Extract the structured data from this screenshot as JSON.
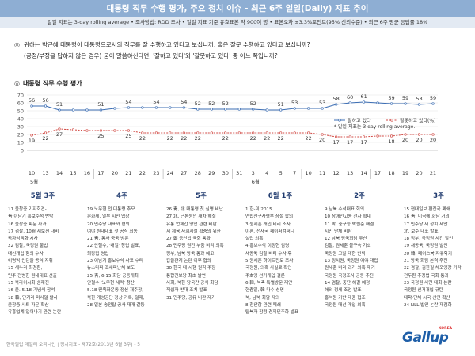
{
  "header": {
    "title": "대통령 직무 수행 평가, 주요 정치 이슈 - 최근 6주 일일(Daily) 지표 추이"
  },
  "subheader": {
    "text": "일일 지표는 3-day rolling average • 조사방법: RDD 조사 • 일일 지표 기준 유효표본 약 900여 명 • 표본오차 ±3.3%포인트(95% 신뢰수준) • 최근 6주 평균 응답률 18%"
  },
  "question": {
    "icon": "◎",
    "line1": "귀하는 박근혜 대통령이 대통령으로서의 직무를 잘 수행하고 있다고 보십니까, 혹은 잘못 수행하고 있다고 보십니까?",
    "line2": "(긍정/부정을 답하지 않은 경우) 굳이 말씀하신다면, '잘하고 있다'와 '잘못하고 있다' 중 어느 쪽입니까?"
  },
  "chart_title": {
    "icon": "◎",
    "text": "대통령 직무 수행 평가"
  },
  "chart_data": {
    "type": "line",
    "y_ticks": [
      "70",
      "60",
      "50",
      "40",
      "30",
      "20",
      "10",
      "0"
    ],
    "ylim": [
      0,
      70
    ],
    "grid": true,
    "legend": {
      "position": "right",
      "entries": [
        "잘하고 있다",
        "잘못하고 있다(%)"
      ],
      "note": "* 일일 지표는 3-day rolling average."
    },
    "x_labels": [
      "10",
      "13",
      "14",
      "15",
      "16",
      "17",
      "20",
      "21",
      "22",
      "23",
      "24",
      "27",
      "28",
      "29",
      "30",
      "31",
      "3",
      "4",
      "5",
      "7",
      "10",
      "11",
      "12",
      "13",
      "14",
      "17",
      "18",
      "19",
      "20",
      "21"
    ],
    "month_marks": [
      {
        "index": 0,
        "label": "5월"
      },
      {
        "index": 16,
        "label": "6월"
      }
    ],
    "series": [
      {
        "name": "잘하고 있다",
        "color": "#3b6db3",
        "values": [
          56,
          56,
          51,
          null,
          null,
          51,
          null,
          54,
          null,
          54,
          null,
          54,
          52,
          52,
          52,
          null,
          52,
          null,
          51,
          53,
          null,
          53,
          58,
          60,
          61,
          null,
          59,
          59,
          58,
          59
        ],
        "labels": [
          56,
          56,
          51,
          null,
          null,
          51,
          null,
          54,
          null,
          54,
          null,
          54,
          52,
          52,
          52,
          null,
          52,
          null,
          51,
          53,
          null,
          53,
          58,
          60,
          61,
          null,
          59,
          59,
          58,
          59
        ],
        "render": [
          56,
          56,
          51,
          51,
          51,
          51,
          53,
          54,
          54,
          54,
          54,
          54,
          52,
          52,
          52,
          52,
          52,
          51,
          51,
          53,
          53,
          53,
          58,
          60,
          61,
          60,
          59,
          59,
          58,
          59
        ]
      },
      {
        "name": "잘못하고 있다(%)",
        "color": "#d14a44",
        "values": [
          19,
          22,
          27,
          null,
          null,
          25,
          null,
          25,
          22,
          null,
          22,
          22,
          22,
          null,
          22,
          null,
          22,
          22,
          22,
          null,
          22,
          20,
          17,
          17,
          17,
          null,
          18,
          20,
          20,
          20
        ],
        "labels": [
          19,
          22,
          27,
          null,
          null,
          25,
          null,
          25,
          22,
          null,
          22,
          22,
          22,
          null,
          22,
          null,
          22,
          22,
          22,
          null,
          22,
          20,
          17,
          17,
          17,
          null,
          18,
          20,
          20,
          20
        ],
        "render": [
          19,
          22,
          27,
          26,
          25,
          25,
          25,
          25,
          22,
          22,
          22,
          22,
          22,
          22,
          22,
          22,
          22,
          22,
          22,
          22,
          22,
          20,
          17,
          17,
          17,
          18,
          18,
          20,
          20,
          20
        ]
      }
    ]
  },
  "weeks": [
    {
      "title": "5월 3주",
      "items": [
        "11 윤창중 기자회견-",
        "  靑 이남기 홍보수석 반박",
        "16 윤창중 파문 사과",
        "17 검찰, 10월 재보선 대비",
        "  독자석택화 시사",
        "22 검찰, 국정원 불법",
        "  대선개입 혐의 수사",
        "  이명박 인턴을 공식 지휘",
        "15 새누리 최경환,",
        "  민주 전병헌 원내대표 선출",
        "15 북라이시화 송재전",
        "16 윤. 5.18 기념식 참석",
        "18 韓, 단거리 미사일 발사",
        "  윤창중 사퇴 파문 확산",
        "  유흥업계 일어나기 관련 논란"
      ]
    },
    {
      "title": "4주",
      "items": [
        "19 노무현 전 대통령 추모",
        "  문화제, 일부 시민 입장",
        "20 민주당 대표와 협의",
        "  여야 원내대표 첫 공식 회동",
        "21 靑, 통사 중국 방문",
        "22 안철수, '내일' 창립 발표,",
        "  최장집 영입",
        "23 이남기 홍보수석 사표 수리",
        "  뉴스타파 조세피난처 보도",
        "25 靑, 6.15 회담 공동개최",
        "  안철수 '노무현 세력' 청산",
        "  5.18 민족화운동 정신 재주장,",
        "  북한 개성공단 정상 기록, 일제,",
        "28 일본 송전탑 공사 재개 갈등"
      ]
    },
    {
      "title": "5주",
      "items": [
        "26 靑, 北 대통령 첫 실명 비난",
        "27 北, 근본원인 재차 해설",
        "  유통 업체간 영업 관련 비판",
        "  서 체육,사회시설 확충의 위한",
        "27 鄭 동산법 국회 통과",
        "28 민주당 원전 부품 비리 의혹",
        "  정부, 남북 당국 통과 예고",
        "  갑을관계 논란 이후 협의",
        "30 한국 대 시행 원칙 주장",
        "  통합진보당 최초 발언",
        "  사회, 북한 당국간 공식 회담",
        "  적십자 반대 조치 발표",
        "31 민주당, 공유 비판 제기"
      ]
    },
    {
      "title": "6월 1주",
      "items": [
        "1 한-미 2015",
        "  연합전구사령부 창설 합의",
        "3 원세훈 개인 비리 조사",
        "  이혼, 전재국 페이퍼컴퍼니",
        "  설립 의혹",
        "4 홍보수석 이정현 임명",
        "  채동욱 검찰 비리 수사 후",
        "5 원세훈 하이트진로 조사",
        "  국정원, 의혹 사실로 확인",
        "  주호영 선거개입 결론",
        "6 韓, 북측 특별방문 제안",
        "  현충일, 韓 다수 성명",
        "  북, 남북 회담 제의",
        "8 천안함 관련 폐쇄",
        "  탈북자 잠정 경제민주화 발표"
      ]
    },
    {
      "title": "2주",
      "items": [
        "9 남북 수석대표 회의",
        "10 장애인고용 전자 확대",
        "11 박, 중구등 박원순 해결",
        "  시민 단체 비판",
        "12 남북 당국회담 무산",
        "  검찰, 원세훈 불구속 기소",
        "  국정원 고발 대한 반박",
        "13 정치권, 국정원 여야 대립",
        "  원세훈 비리 과거 의혹 재기",
        "  국정원 국정조사 공동 추진",
        "14 검찰, 중단 해결 예정",
        "  해외 정세 조언 발표",
        "  홍석원 기반 대중 협조",
        "  국정원 대선 개입 의혹"
      ]
    },
    {
      "title": "3주",
      "items": [
        "15 현대일보 편집국 폐쇄",
        "16 靑, 미국에 회담 거의",
        "17 민주당 새 정치 제안",
        "  北, 보수 대표 발표",
        "18 정부, 국정원 사건 발언",
        "19 채동욱, 국정원 발언",
        "20 韓, 페이스북 자유학기",
        "21 당국 회담 본격 추진",
        "22 검찰, 김한길 체포영장 기각",
        "  전두환 추징법 국회 통과",
        "23 국정원 사면 대화 논란",
        "  국정원 선거개입 규탄",
        "  대학·단체 시국 선언 확산",
        "24 NLL 발언 논란 재점화"
      ]
    }
  ],
  "footer": {
    "text": "한국갤럽 데일리 오피니언 | 정치지표 - 제72호(2013년 6월 3주) - 5"
  },
  "logo": {
    "text": "Gallup",
    "sub": "KOREA"
  }
}
